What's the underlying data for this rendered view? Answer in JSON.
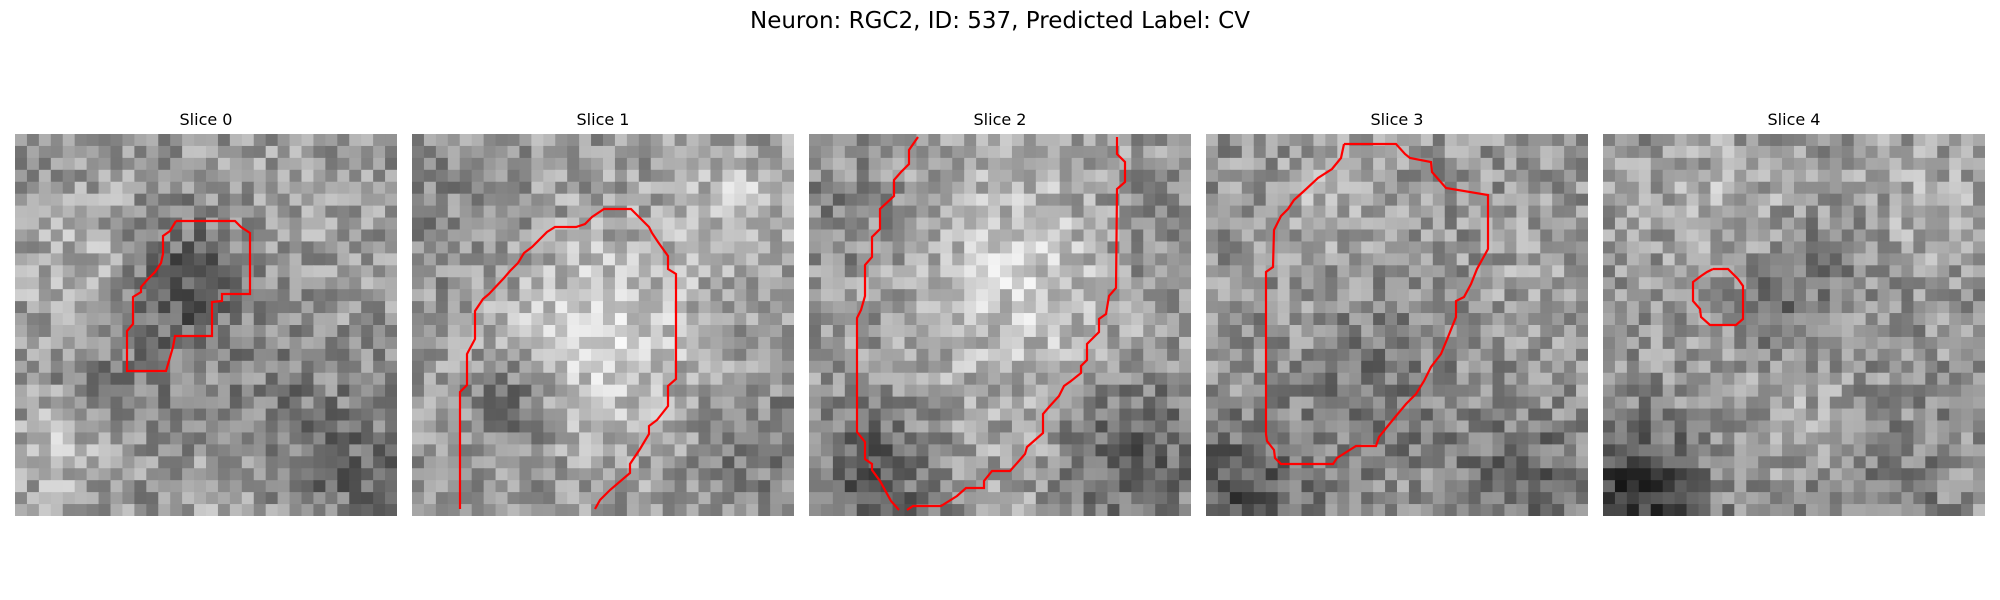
{
  "figure": {
    "title": "Neuron: RGC2, ID: 537, Predicted Label: CV"
  },
  "colors": {
    "contour": "#ff0000",
    "background": "#ffffff",
    "colormap": "grayscale"
  },
  "slices": [
    {
      "title": "Slice 0"
    },
    {
      "title": "Slice 1"
    },
    {
      "title": "Slice 2"
    },
    {
      "title": "Slice 3"
    },
    {
      "title": "Slice 4"
    }
  ]
}
